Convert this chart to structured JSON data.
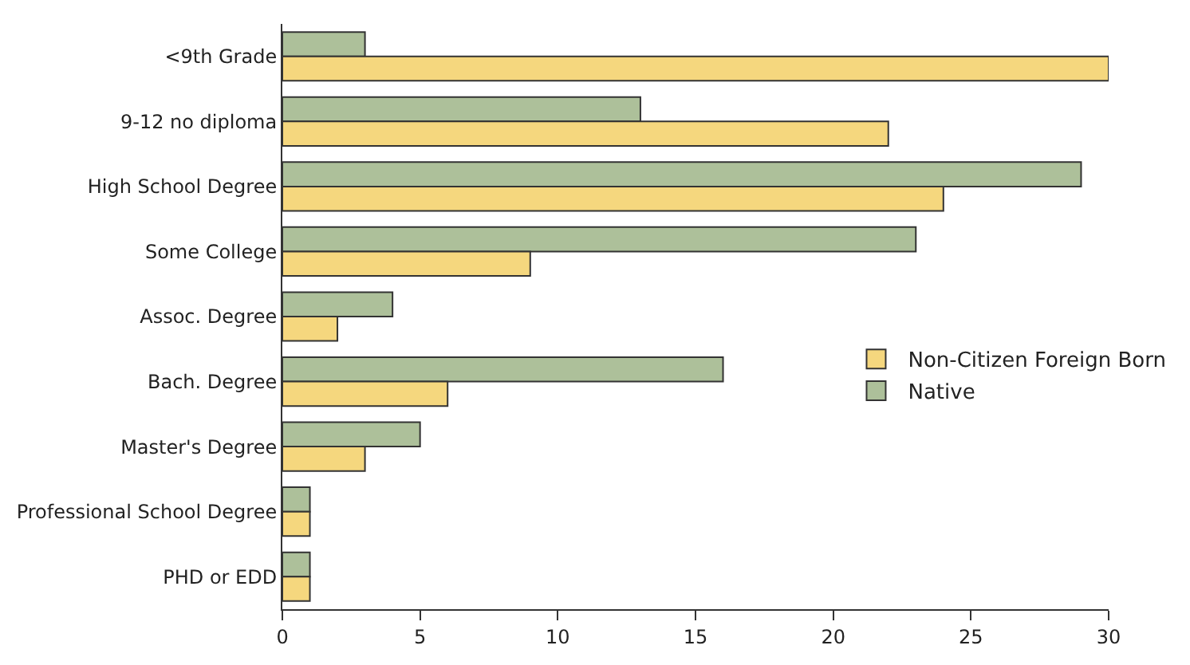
{
  "chart_data": {
    "type": "bar",
    "orientation": "horizontal",
    "categories": [
      "<9th Grade",
      "9-12 no diploma",
      "High School Degree",
      "Some College",
      "Assoc. Degree",
      "Bach. Degree",
      "Master's Degree",
      "Professional School Degree",
      "PHD or EDD"
    ],
    "series": [
      {
        "name": "Native",
        "color": "#adc09a",
        "values": [
          3,
          13,
          29,
          23,
          4,
          16,
          5,
          1,
          1
        ]
      },
      {
        "name": "Non-Citizen Foreign Born",
        "color": "#f5d77e",
        "values": [
          30,
          22,
          24,
          9,
          2,
          6,
          3,
          1,
          1
        ]
      }
    ],
    "xlim": [
      0,
      30
    ],
    "xticks": [
      0,
      5,
      10,
      15,
      20,
      25,
      30
    ],
    "legend": "right"
  }
}
